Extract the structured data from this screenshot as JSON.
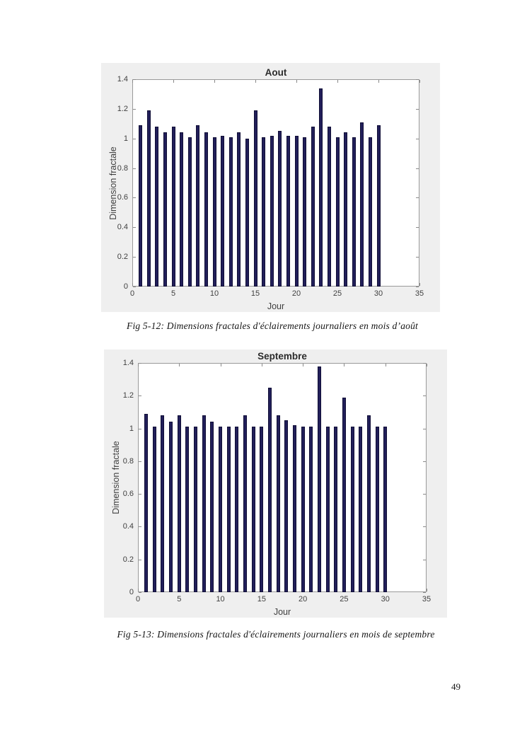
{
  "page": {
    "number": "49"
  },
  "figures": [
    {
      "caption": "Fig 5-12: Dimensions fractales d'éclairements journaliers en mois d’août"
    },
    {
      "caption": "Fig 5-13: Dimensions fractales d'éclairements journaliers en mois de septembre"
    }
  ],
  "chart_data": [
    {
      "type": "bar",
      "title": "Aout",
      "xlabel": "Jour",
      "ylabel": "Dimension fractale",
      "xlim": [
        0,
        35
      ],
      "ylim": [
        0,
        1.4
      ],
      "xticks": [
        0,
        5,
        10,
        15,
        20,
        25,
        30,
        35
      ],
      "yticks": [
        0,
        0.2,
        0.4,
        0.6,
        0.8,
        1,
        1.2,
        1.4
      ],
      "grid": false,
      "legend": null,
      "x": [
        1,
        2,
        3,
        4,
        5,
        6,
        7,
        8,
        9,
        10,
        11,
        12,
        13,
        14,
        15,
        16,
        17,
        18,
        19,
        20,
        21,
        22,
        23,
        24,
        25,
        26,
        27,
        28,
        29,
        30
      ],
      "values": [
        1.09,
        1.19,
        1.08,
        1.04,
        1.08,
        1.04,
        1.01,
        1.09,
        1.04,
        1.01,
        1.02,
        1.01,
        1.04,
        1.0,
        1.19,
        1.01,
        1.02,
        1.05,
        1.02,
        1.02,
        1.01,
        1.08,
        1.34,
        1.08,
        1.01,
        1.04,
        1.01,
        1.11,
        1.01,
        1.09
      ],
      "bar_color": "#221f5a",
      "bar_edge_color": "#0f0d35",
      "figure_bg": "#efefef",
      "plot_bg": "#ffffff"
    },
    {
      "type": "bar",
      "title": "Septembre",
      "xlabel": "Jour",
      "ylabel": "Dimension fractale",
      "xlim": [
        0,
        35
      ],
      "ylim": [
        0,
        1.4
      ],
      "xticks": [
        0,
        5,
        10,
        15,
        20,
        25,
        30,
        35
      ],
      "yticks": [
        0,
        0.2,
        0.4,
        0.6,
        0.8,
        1,
        1.2,
        1.4
      ],
      "grid": false,
      "legend": null,
      "x": [
        1,
        2,
        3,
        4,
        5,
        6,
        7,
        8,
        9,
        10,
        11,
        12,
        13,
        14,
        15,
        16,
        17,
        18,
        19,
        20,
        21,
        22,
        23,
        24,
        25,
        26,
        27,
        28,
        29,
        30
      ],
      "values": [
        1.09,
        1.01,
        1.08,
        1.04,
        1.08,
        1.01,
        1.01,
        1.08,
        1.04,
        1.01,
        1.01,
        1.01,
        1.08,
        1.01,
        1.01,
        1.25,
        1.08,
        1.05,
        1.02,
        1.01,
        1.01,
        1.38,
        1.01,
        1.01,
        1.19,
        1.01,
        1.01,
        1.08,
        1.01,
        1.01
      ],
      "bar_color": "#221f5a",
      "bar_edge_color": "#0f0d35",
      "figure_bg": "#efefef",
      "plot_bg": "#ffffff"
    }
  ]
}
